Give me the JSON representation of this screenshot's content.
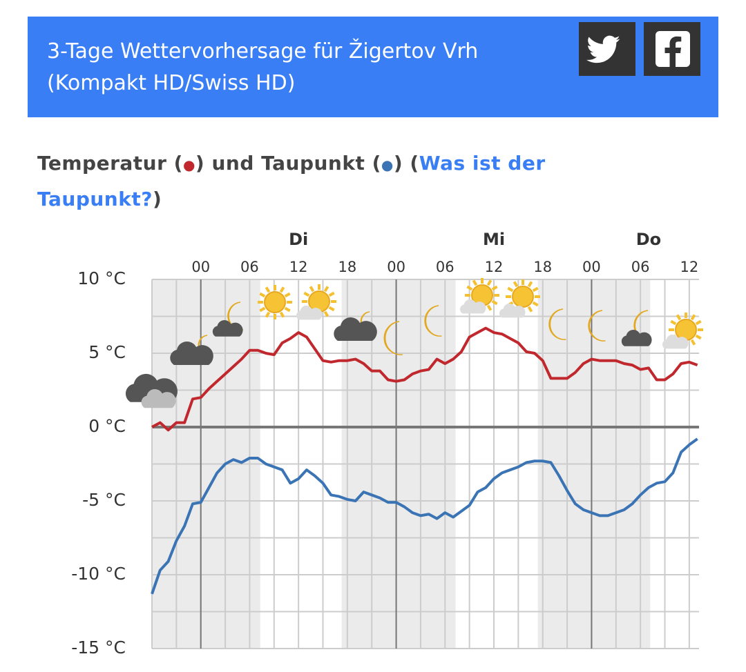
{
  "header": {
    "title": "3-Tage Wettervorhersage für Žigertov Vrh (Kompakt HD/Swiss HD)"
  },
  "chart_data": {
    "type": "line",
    "title_parts": [
      "Temperatur (",
      "●",
      ") und Taupunkt (",
      "●",
      ") (",
      "Was ist der Taupunkt?",
      ")"
    ],
    "x": [
      -6,
      -5,
      -4,
      -3,
      -2,
      -1,
      0,
      1,
      2,
      3,
      4,
      5,
      6,
      7,
      8,
      9,
      10,
      11,
      12,
      13,
      14,
      15,
      16,
      17,
      18,
      19,
      20,
      21,
      22,
      23,
      24,
      25,
      26,
      27,
      28,
      29,
      30,
      31,
      32,
      33,
      34,
      35,
      36,
      37,
      38,
      39,
      40,
      41,
      42,
      43,
      44,
      45,
      46,
      47,
      48,
      49,
      50,
      51,
      52,
      53,
      54,
      55,
      56,
      57,
      58,
      59,
      60,
      61
    ],
    "series": [
      {
        "name": "Temperatur",
        "color": "#c0282d",
        "values": [
          0,
          0.3,
          -0.2,
          0.3,
          0.3,
          1.9,
          2.0,
          2.6,
          3.1,
          3.6,
          4.1,
          4.6,
          5.2,
          5.2,
          5.0,
          4.9,
          5.7,
          6.0,
          6.4,
          6.1,
          5.3,
          4.5,
          4.4,
          4.5,
          4.5,
          4.6,
          4.3,
          3.8,
          3.8,
          3.2,
          3.1,
          3.2,
          3.6,
          3.8,
          3.9,
          4.6,
          4.3,
          4.6,
          5.1,
          6.1,
          6.4,
          6.7,
          6.4,
          6.3,
          6.0,
          5.7,
          5.1,
          5.0,
          4.5,
          3.3,
          3.3,
          3.3,
          3.7,
          4.3,
          4.6,
          4.5,
          4.5,
          4.5,
          4.3,
          4.2,
          3.9,
          4.0,
          3.2,
          3.2,
          3.6,
          4.3,
          4.4,
          4.2
        ]
      },
      {
        "name": "Taupunkt",
        "color": "#3a74b4",
        "values": [
          -11.3,
          -9.7,
          -9.1,
          -7.7,
          -6.7,
          -5.2,
          -5.1,
          -4.1,
          -3.1,
          -2.5,
          -2.2,
          -2.4,
          -2.1,
          -2.1,
          -2.5,
          -2.7,
          -2.9,
          -3.8,
          -3.5,
          -2.9,
          -3.3,
          -3.8,
          -4.6,
          -4.7,
          -4.9,
          -5.0,
          -4.4,
          -4.6,
          -4.8,
          -5.1,
          -5.1,
          -5.4,
          -5.8,
          -6.0,
          -5.9,
          -6.2,
          -5.8,
          -6.1,
          -5.7,
          -5.3,
          -4.4,
          -4.1,
          -3.5,
          -3.1,
          -2.9,
          -2.7,
          -2.4,
          -2.3,
          -2.3,
          -2.4,
          -3.3,
          -4.3,
          -5.2,
          -5.6,
          -5.8,
          -6.0,
          -6.0,
          -5.8,
          -5.6,
          -5.2,
          -4.6,
          -4.1,
          -3.8,
          -3.7,
          -3.1,
          -1.7,
          -1.2,
          -0.8
        ]
      }
    ],
    "xlim": [
      -6,
      61.2
    ],
    "xticks": [
      {
        "value": 0,
        "label": "00"
      },
      {
        "value": 6,
        "label": "06"
      },
      12,
      18,
      {
        "value": 24,
        "label": "00"
      },
      {
        "value": 30,
        "label": "06"
      },
      {
        "value": 36,
        "label": "12"
      },
      {
        "value": 42,
        "label": "18"
      },
      {
        "value": 48,
        "label": "00"
      },
      {
        "value": 54,
        "label": "06"
      },
      {
        "value": 60,
        "label": "12"
      }
    ],
    "day_labels": [
      {
        "value": 12,
        "label": "Di"
      },
      {
        "value": 36,
        "label": "Mi"
      },
      {
        "value": 55,
        "label": "Do"
      }
    ],
    "day_lines": [
      0,
      24,
      48
    ],
    "xgrid": [
      -3,
      0,
      3,
      6,
      9,
      12,
      15,
      18,
      21,
      24,
      27,
      30,
      33,
      36,
      39,
      42,
      45,
      48,
      51,
      54,
      57,
      60
    ],
    "night_bands": [
      [
        -6,
        7.3
      ],
      [
        17.3,
        31.3
      ],
      [
        41.4,
        55.2
      ]
    ],
    "ylim": [
      -15,
      10
    ],
    "yticks": [
      {
        "value": 10,
        "label": "10 °C"
      },
      {
        "value": 5,
        "label": "5 °C"
      },
      {
        "value": 0,
        "label": "0 °C"
      },
      {
        "value": -5,
        "label": "-5 °C"
      },
      {
        "value": -10,
        "label": "-10 °C"
      },
      {
        "value": -15,
        "label": "-15 °C"
      }
    ],
    "yminor": [
      7.5,
      2.5,
      -2.5,
      -7.5,
      -12.5
    ],
    "grid": true
  }
}
